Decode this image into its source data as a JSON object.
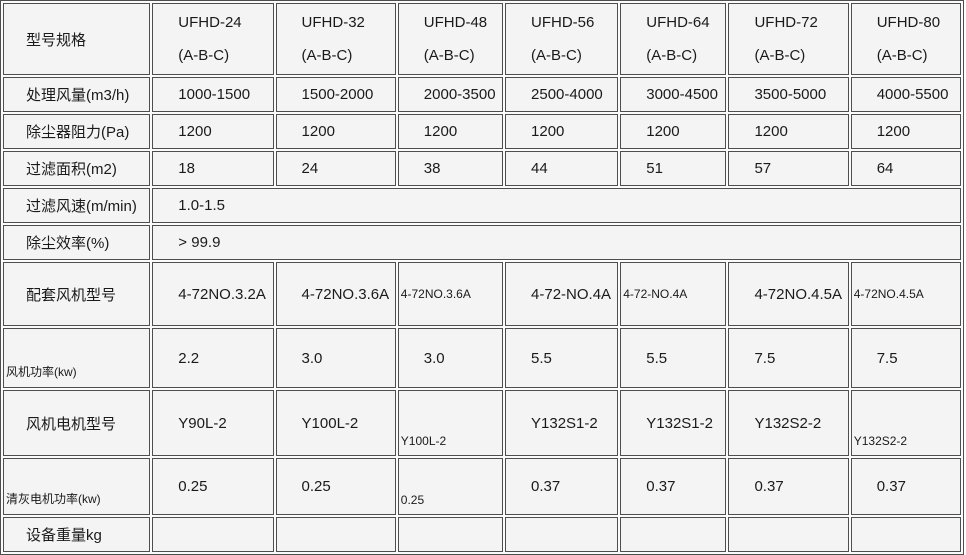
{
  "table": {
    "header": {
      "label": "型号规格",
      "models": [
        {
          "name": "UFHD-24",
          "sub": "(A-B-C)"
        },
        {
          "name": "UFHD-32",
          "sub": "(A-B-C)"
        },
        {
          "name": "UFHD-48",
          "sub": "(A-B-C)"
        },
        {
          "name": "UFHD-56",
          "sub": "(A-B-C)"
        },
        {
          "name": "UFHD-64",
          "sub": "(A-B-C)"
        },
        {
          "name": "UFHD-72",
          "sub": "(A-B-C)"
        },
        {
          "name": "UFHD-80",
          "sub": "(A-B-C)"
        }
      ]
    },
    "rows": [
      {
        "label": "处理风量(m3/h)",
        "label_variant": "",
        "cells": [
          {
            "text": "1000-1500",
            "variant": ""
          },
          {
            "text": "1500-2000",
            "variant": ""
          },
          {
            "text": "2000-3500",
            "variant": ""
          },
          {
            "text": "2500-4000",
            "variant": ""
          },
          {
            "text": "3000-4500",
            "variant": ""
          },
          {
            "text": "3500-5000",
            "variant": ""
          },
          {
            "text": "4000-5500",
            "variant": ""
          }
        ]
      },
      {
        "label": "除尘器阻力(Pa)",
        "label_variant": "",
        "cells": [
          {
            "text": "1200",
            "variant": ""
          },
          {
            "text": "1200",
            "variant": ""
          },
          {
            "text": "1200",
            "variant": ""
          },
          {
            "text": "1200",
            "variant": ""
          },
          {
            "text": "1200",
            "variant": ""
          },
          {
            "text": "1200",
            "variant": ""
          },
          {
            "text": "1200",
            "variant": ""
          }
        ]
      },
      {
        "label": "过滤面积(m2)",
        "label_variant": "",
        "cells": [
          {
            "text": "18",
            "variant": ""
          },
          {
            "text": "24",
            "variant": ""
          },
          {
            "text": "38",
            "variant": ""
          },
          {
            "text": "44",
            "variant": ""
          },
          {
            "text": "51",
            "variant": ""
          },
          {
            "text": "57",
            "variant": ""
          },
          {
            "text": "64",
            "variant": ""
          }
        ]
      },
      {
        "label": "过滤风速(m/min)",
        "label_variant": "",
        "span_text": "1.0-1.5"
      },
      {
        "label": "除尘效率(%)",
        "label_variant": "",
        "span_text": "> 99.9"
      },
      {
        "label": "配套风机型号",
        "label_variant": "",
        "cells": [
          {
            "text": "4-72NO.3.2A",
            "variant": ""
          },
          {
            "text": "4-72NO.3.6A",
            "variant": ""
          },
          {
            "text": "4-72NO.3.6A",
            "variant": "small"
          },
          {
            "text": "4-72-NO.4A",
            "variant": ""
          },
          {
            "text": "4-72-NO.4A",
            "variant": "small"
          },
          {
            "text": "4-72NO.4.5A",
            "variant": ""
          },
          {
            "text": "4-72NO.4.5A",
            "variant": "small"
          }
        ]
      },
      {
        "label": "风机功率(kw)",
        "label_variant": "small-bottom",
        "cells": [
          {
            "text": "2.2",
            "variant": ""
          },
          {
            "text": "3.0",
            "variant": ""
          },
          {
            "text": "3.0",
            "variant": ""
          },
          {
            "text": "5.5",
            "variant": ""
          },
          {
            "text": "5.5",
            "variant": ""
          },
          {
            "text": "7.5",
            "variant": ""
          },
          {
            "text": "7.5",
            "variant": ""
          }
        ]
      },
      {
        "label": "风机电机型号",
        "label_variant": "",
        "cells": [
          {
            "text": "Y90L-2",
            "variant": ""
          },
          {
            "text": "Y100L-2",
            "variant": ""
          },
          {
            "text": "Y100L-2",
            "variant": "small-bottom"
          },
          {
            "text": "Y132S1-2",
            "variant": ""
          },
          {
            "text": "Y132S1-2",
            "variant": ""
          },
          {
            "text": "Y132S2-2",
            "variant": ""
          },
          {
            "text": "Y132S2-2",
            "variant": "small-bottom"
          }
        ]
      },
      {
        "label": "清灰电机功率(kw)",
        "label_variant": "small-bottom",
        "cells": [
          {
            "text": "0.25",
            "variant": ""
          },
          {
            "text": "0.25",
            "variant": ""
          },
          {
            "text": "0.25",
            "variant": "small-bottom"
          },
          {
            "text": "0.37",
            "variant": ""
          },
          {
            "text": "0.37",
            "variant": ""
          },
          {
            "text": "0.37",
            "variant": ""
          },
          {
            "text": "0.37",
            "variant": ""
          }
        ]
      },
      {
        "label": "设备重量kg",
        "label_variant": "",
        "cells": [
          {
            "text": "",
            "variant": ""
          },
          {
            "text": "",
            "variant": ""
          },
          {
            "text": "",
            "variant": ""
          },
          {
            "text": "",
            "variant": ""
          },
          {
            "text": "",
            "variant": ""
          },
          {
            "text": "",
            "variant": ""
          },
          {
            "text": "",
            "variant": ""
          }
        ]
      }
    ]
  }
}
